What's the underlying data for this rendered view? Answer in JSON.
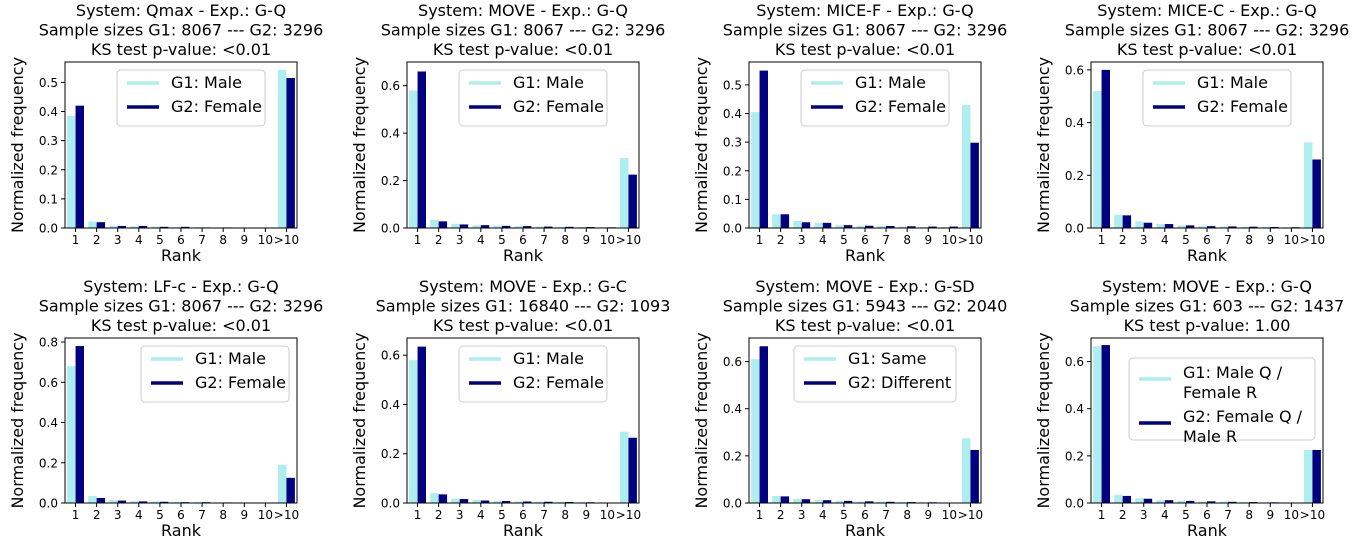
{
  "colors": {
    "g1": "#aeeeee",
    "g2": "#000080"
  },
  "chart_data": [
    {
      "type": "bar",
      "title_lines": [
        "System: Qmax - Exp.: G-Q",
        "Sample sizes G1: 8067 --- G2: 3296",
        "KS test p-value: <0.01"
      ],
      "xlabel": "Rank",
      "ylabel": "Normalized frequency",
      "categories": [
        "1",
        "2",
        "3",
        "4",
        "5",
        "6",
        "7",
        "8",
        "9",
        "10",
        ">10"
      ],
      "ylim": [
        0,
        0.57
      ],
      "yticks": [
        "0.0",
        "0.1",
        "0.2",
        "0.3",
        "0.4",
        "0.5"
      ],
      "legend_placement": "top-center",
      "series": [
        {
          "name": "G1: Male",
          "values": [
            0.385,
            0.022,
            0.008,
            0.006,
            0.005,
            0.003,
            0.003,
            0.002,
            0.002,
            0.001,
            0.543
          ]
        },
        {
          "name": "G2: Female",
          "values": [
            0.42,
            0.02,
            0.007,
            0.007,
            0.004,
            0.004,
            0.002,
            0.002,
            0.001,
            0.001,
            0.515
          ]
        }
      ]
    },
    {
      "type": "bar",
      "title_lines": [
        "System: MOVE - Exp.: G-Q",
        "Sample sizes G1: 8067 --- G2: 3296",
        "KS test p-value: <0.01"
      ],
      "xlabel": "Rank",
      "ylabel": "Normalized frequency",
      "categories": [
        "1",
        "2",
        "3",
        "4",
        "5",
        "6",
        "7",
        "8",
        "9",
        "10",
        ">10"
      ],
      "ylim": [
        0,
        0.7
      ],
      "yticks": [
        "0.0",
        "0.2",
        "0.4",
        "0.6"
      ],
      "legend_placement": "top-center",
      "series": [
        {
          "name": "G1: Male",
          "values": [
            0.58,
            0.035,
            0.018,
            0.012,
            0.01,
            0.008,
            0.006,
            0.005,
            0.004,
            0.003,
            0.295
          ]
        },
        {
          "name": "G2: Female",
          "values": [
            0.66,
            0.028,
            0.015,
            0.012,
            0.009,
            0.008,
            0.006,
            0.005,
            0.004,
            0.003,
            0.225
          ]
        }
      ]
    },
    {
      "type": "bar",
      "title_lines": [
        "System: MICE-F - Exp.: G-Q",
        "Sample sizes G1: 8067 --- G2: 3296",
        "KS test p-value: <0.01"
      ],
      "xlabel": "Rank",
      "ylabel": "Normalized frequency",
      "categories": [
        "1",
        "2",
        "3",
        "4",
        "5",
        "6",
        "7",
        "8",
        "9",
        "10",
        ">10"
      ],
      "ylim": [
        0,
        0.58
      ],
      "yticks": [
        "0.0",
        "0.1",
        "0.2",
        "0.3",
        "0.4",
        "0.5"
      ],
      "legend_placement": "top-center",
      "series": [
        {
          "name": "G1: Male",
          "values": [
            0.405,
            0.048,
            0.025,
            0.018,
            0.01,
            0.008,
            0.007,
            0.005,
            0.004,
            0.003,
            0.43
          ]
        },
        {
          "name": "G2: Female",
          "values": [
            0.55,
            0.048,
            0.02,
            0.018,
            0.01,
            0.008,
            0.007,
            0.006,
            0.005,
            0.005,
            0.298
          ]
        }
      ]
    },
    {
      "type": "bar",
      "title_lines": [
        "System: MICE-C - Exp.: G-Q",
        "Sample sizes G1: 8067 --- G2: 3296",
        "KS test p-value: <0.01"
      ],
      "xlabel": "Rank",
      "ylabel": "Normalized frequency",
      "categories": [
        "1",
        "2",
        "3",
        "4",
        "5",
        "6",
        "7",
        "8",
        "9",
        "10",
        ">10"
      ],
      "ylim": [
        0,
        0.63
      ],
      "yticks": [
        "0.0",
        "0.2",
        "0.4",
        "0.6"
      ],
      "legend_placement": "top-center",
      "series": [
        {
          "name": "G1: Male",
          "values": [
            0.52,
            0.05,
            0.025,
            0.015,
            0.01,
            0.007,
            0.006,
            0.005,
            0.004,
            0.003,
            0.325
          ]
        },
        {
          "name": "G2: Female",
          "values": [
            0.6,
            0.048,
            0.02,
            0.015,
            0.01,
            0.007,
            0.006,
            0.005,
            0.004,
            0.003,
            0.26
          ]
        }
      ]
    },
    {
      "type": "bar",
      "title_lines": [
        "System: LF-c - Exp.: G-Q",
        "Sample sizes G1: 8067 --- G2: 3296",
        "KS test p-value: <0.01"
      ],
      "xlabel": "Rank",
      "ylabel": "Normalized frequency",
      "categories": [
        "1",
        "2",
        "3",
        "4",
        "5",
        "6",
        "7",
        "8",
        "9",
        "10",
        ">10"
      ],
      "ylim": [
        0,
        0.82
      ],
      "yticks": [
        "0.0",
        "0.2",
        "0.4",
        "0.6",
        "0.8"
      ],
      "legend_placement": "top-right",
      "series": [
        {
          "name": "G1: Male",
          "values": [
            0.68,
            0.035,
            0.015,
            0.01,
            0.008,
            0.005,
            0.004,
            0.003,
            0.002,
            0.001,
            0.19
          ]
        },
        {
          "name": "G2: Female",
          "values": [
            0.78,
            0.025,
            0.012,
            0.008,
            0.006,
            0.004,
            0.004,
            0.003,
            0.002,
            0.001,
            0.125
          ]
        }
      ]
    },
    {
      "type": "bar",
      "title_lines": [
        "System: MOVE - Exp.: G-C",
        "Sample sizes G1: 16840 --- G2: 1093",
        "KS test p-value: <0.01"
      ],
      "xlabel": "Rank",
      "ylabel": "Normalized frequency",
      "categories": [
        "1",
        "2",
        "3",
        "4",
        "5",
        "6",
        "7",
        "8",
        "9",
        "10",
        ">10"
      ],
      "ylim": [
        0,
        0.67
      ],
      "yticks": [
        "0.0",
        "0.2",
        "0.4",
        "0.6"
      ],
      "legend_placement": "top-center",
      "series": [
        {
          "name": "G1: Male",
          "values": [
            0.58,
            0.04,
            0.018,
            0.012,
            0.009,
            0.006,
            0.005,
            0.004,
            0.003,
            0.002,
            0.29
          ]
        },
        {
          "name": "G2: Female",
          "values": [
            0.635,
            0.035,
            0.016,
            0.01,
            0.008,
            0.006,
            0.005,
            0.004,
            0.003,
            0.002,
            0.265
          ]
        }
      ]
    },
    {
      "type": "bar",
      "title_lines": [
        "System: MOVE - Exp.: G-SD",
        "Sample sizes G1: 5943 --- G2: 2040",
        "KS test p-value: <0.01"
      ],
      "xlabel": "Rank",
      "ylabel": "Normalized frequency",
      "categories": [
        "1",
        "2",
        "3",
        "4",
        "5",
        "6",
        "7",
        "8",
        "9",
        "10",
        ">10"
      ],
      "ylim": [
        0,
        0.7
      ],
      "yticks": [
        "0.0",
        "0.2",
        "0.4",
        "0.6"
      ],
      "legend_placement": "top-center",
      "series": [
        {
          "name": "G1: Same",
          "values": [
            0.61,
            0.03,
            0.018,
            0.012,
            0.009,
            0.006,
            0.005,
            0.004,
            0.003,
            0.002,
            0.275
          ]
        },
        {
          "name": "G2: Different",
          "values": [
            0.665,
            0.028,
            0.016,
            0.012,
            0.009,
            0.007,
            0.005,
            0.004,
            0.003,
            0.002,
            0.225
          ]
        }
      ]
    },
    {
      "type": "bar",
      "title_lines": [
        "System: MOVE - Exp.: G-Q",
        "Sample sizes G1: 603 --- G2: 1437",
        "KS test p-value: 1.00"
      ],
      "xlabel": "Rank",
      "ylabel": "Normalized frequency",
      "categories": [
        "1",
        "2",
        "3",
        "4",
        "5",
        "6",
        "7",
        "8",
        "9",
        "10",
        ">10"
      ],
      "ylim": [
        0,
        0.7
      ],
      "yticks": [
        "0.0",
        "0.2",
        "0.4",
        "0.6"
      ],
      "legend_placement": "top-right",
      "series": [
        {
          "name": "G1: Male Q /\nFemale R",
          "values": [
            0.665,
            0.035,
            0.02,
            0.012,
            0.01,
            0.006,
            0.005,
            0.004,
            0.003,
            0.002,
            0.225
          ]
        },
        {
          "name": "G2: Female Q /\nMale R",
          "values": [
            0.67,
            0.03,
            0.018,
            0.012,
            0.009,
            0.007,
            0.005,
            0.004,
            0.003,
            0.002,
            0.225
          ]
        }
      ]
    }
  ]
}
